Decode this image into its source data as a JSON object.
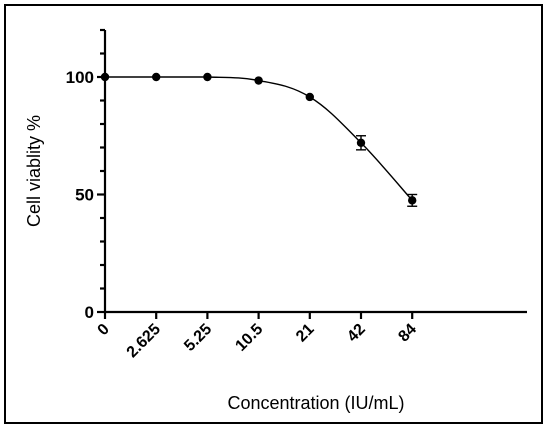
{
  "chart_data": {
    "type": "line",
    "xlabel": "Concentration (IU/mL)",
    "ylabel": "Cell viablity %",
    "categories": [
      "0",
      "2.625",
      "5.25",
      "10.5",
      "21",
      "42",
      "84"
    ],
    "series": [
      {
        "values": [
          100,
          100,
          100,
          98.5,
          91.5,
          72,
          47.5
        ],
        "error": [
          0,
          0,
          0,
          0,
          0,
          3,
          2.5
        ]
      }
    ],
    "yticks": [
      0,
      50,
      100
    ],
    "ylim": [
      0,
      120
    ],
    "grid": false,
    "legend": "none",
    "fit_curve": "sigmoidal dose-response",
    "colors": {
      "line": "#000000",
      "marker": "#000000"
    }
  }
}
